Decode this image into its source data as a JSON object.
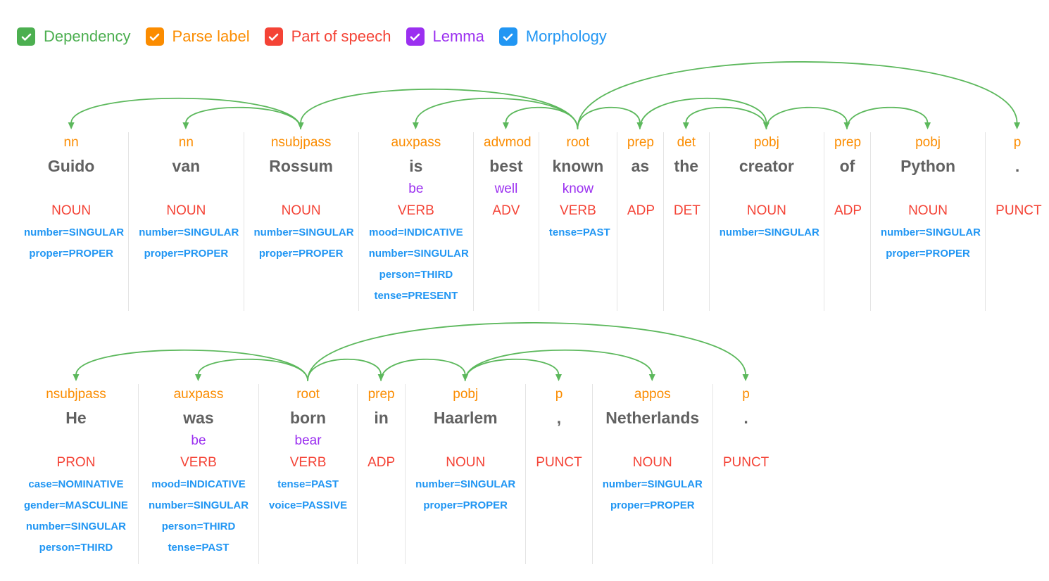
{
  "controls": [
    {
      "id": "dependency",
      "label": "Dependency",
      "color": "#4CAF50",
      "checked": true
    },
    {
      "id": "parse-label",
      "label": "Parse label",
      "color": "#FB8C00",
      "checked": true
    },
    {
      "id": "part-of-speech",
      "label": "Part of speech",
      "color": "#F44336",
      "checked": true
    },
    {
      "id": "lemma",
      "label": "Lemma",
      "color": "#9B30F0",
      "checked": true
    },
    {
      "id": "morphology",
      "label": "Morphology",
      "color": "#2196F3",
      "checked": true
    }
  ],
  "colors": {
    "dependency_arc": "#5CB85C",
    "parse_label": "#FB8C00",
    "word": "#616161",
    "lemma": "#9B30F0",
    "pos": "#F44336",
    "morphology": "#2196F3",
    "divider": "#E4E4E4"
  },
  "sentences": [
    {
      "text": "Guido van Rossum is best known as the creator of Python .",
      "tokens": [
        {
          "word": "Guido",
          "parse_label": "nn",
          "lemma": "",
          "pos": "NOUN",
          "morphology": [
            "number=SINGULAR",
            "proper=PROPER"
          ]
        },
        {
          "word": "van",
          "parse_label": "nn",
          "lemma": "",
          "pos": "NOUN",
          "morphology": [
            "number=SINGULAR",
            "proper=PROPER"
          ]
        },
        {
          "word": "Rossum",
          "parse_label": "nsubjpass",
          "lemma": "",
          "pos": "NOUN",
          "morphology": [
            "number=SINGULAR",
            "proper=PROPER"
          ]
        },
        {
          "word": "is",
          "parse_label": "auxpass",
          "lemma": "be",
          "pos": "VERB",
          "morphology": [
            "mood=INDICATIVE",
            "number=SINGULAR",
            "person=THIRD",
            "tense=PRESENT"
          ]
        },
        {
          "word": "best",
          "parse_label": "advmod",
          "lemma": "well",
          "pos": "ADV",
          "morphology": []
        },
        {
          "word": "known",
          "parse_label": "root",
          "lemma": "know",
          "pos": "VERB",
          "morphology": [
            "tense=PAST"
          ]
        },
        {
          "word": "as",
          "parse_label": "prep",
          "lemma": "",
          "pos": "ADP",
          "morphology": []
        },
        {
          "word": "the",
          "parse_label": "det",
          "lemma": "",
          "pos": "DET",
          "morphology": []
        },
        {
          "word": "creator",
          "parse_label": "pobj",
          "lemma": "",
          "pos": "NOUN",
          "morphology": [
            "number=SINGULAR"
          ]
        },
        {
          "word": "of",
          "parse_label": "prep",
          "lemma": "",
          "pos": "ADP",
          "morphology": []
        },
        {
          "word": "Python",
          "parse_label": "pobj",
          "lemma": "",
          "pos": "NOUN",
          "morphology": [
            "number=SINGULAR",
            "proper=PROPER"
          ]
        },
        {
          "word": ".",
          "parse_label": "p",
          "lemma": "",
          "pos": "PUNCT",
          "morphology": []
        }
      ],
      "arcs": [
        {
          "head": 2,
          "dep": 0
        },
        {
          "head": 2,
          "dep": 1
        },
        {
          "head": 5,
          "dep": 2
        },
        {
          "head": 5,
          "dep": 3
        },
        {
          "head": 5,
          "dep": 4
        },
        {
          "head": 5,
          "dep": 6
        },
        {
          "head": 6,
          "dep": 8
        },
        {
          "head": 8,
          "dep": 7
        },
        {
          "head": 8,
          "dep": 9
        },
        {
          "head": 9,
          "dep": 10
        },
        {
          "head": 5,
          "dep": 11
        }
      ]
    },
    {
      "text": "He was born in Haarlem , Netherlands .",
      "tokens": [
        {
          "word": "He",
          "parse_label": "nsubjpass",
          "lemma": "",
          "pos": "PRON",
          "morphology": [
            "case=NOMINATIVE",
            "gender=MASCULINE",
            "number=SINGULAR",
            "person=THIRD"
          ]
        },
        {
          "word": "was",
          "parse_label": "auxpass",
          "lemma": "be",
          "pos": "VERB",
          "morphology": [
            "mood=INDICATIVE",
            "number=SINGULAR",
            "person=THIRD",
            "tense=PAST"
          ]
        },
        {
          "word": "born",
          "parse_label": "root",
          "lemma": "bear",
          "pos": "VERB",
          "morphology": [
            "tense=PAST",
            "voice=PASSIVE"
          ]
        },
        {
          "word": "in",
          "parse_label": "prep",
          "lemma": "",
          "pos": "ADP",
          "morphology": []
        },
        {
          "word": "Haarlem",
          "parse_label": "pobj",
          "lemma": "",
          "pos": "NOUN",
          "morphology": [
            "number=SINGULAR",
            "proper=PROPER"
          ]
        },
        {
          "word": ",",
          "parse_label": "p",
          "lemma": "",
          "pos": "PUNCT",
          "morphology": []
        },
        {
          "word": "Netherlands",
          "parse_label": "appos",
          "lemma": "",
          "pos": "NOUN",
          "morphology": [
            "number=SINGULAR",
            "proper=PROPER"
          ]
        },
        {
          "word": ".",
          "parse_label": "p",
          "lemma": "",
          "pos": "PUNCT",
          "morphology": []
        }
      ],
      "arcs": [
        {
          "head": 2,
          "dep": 0
        },
        {
          "head": 2,
          "dep": 1
        },
        {
          "head": 2,
          "dep": 3
        },
        {
          "head": 3,
          "dep": 4
        },
        {
          "head": 4,
          "dep": 5
        },
        {
          "head": 4,
          "dep": 6
        },
        {
          "head": 2,
          "dep": 7
        }
      ]
    }
  ]
}
